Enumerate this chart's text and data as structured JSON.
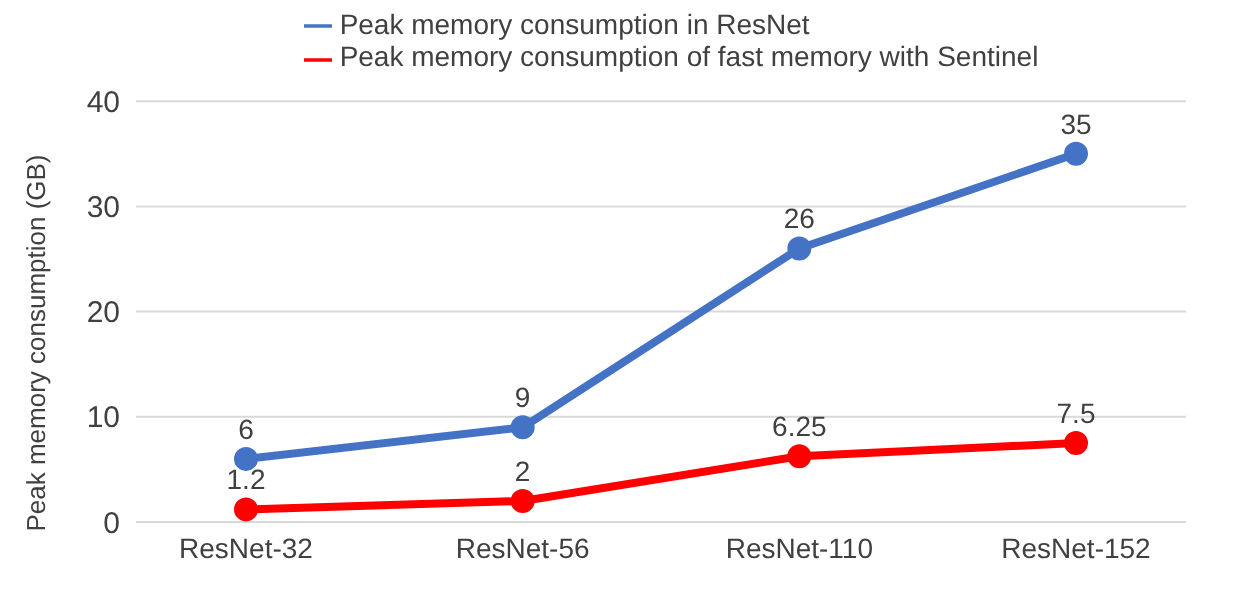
{
  "chart_data": {
    "type": "line",
    "ylabel": "Peak memory consumption (GB)",
    "categories": [
      "ResNet-32",
      "ResNet-56",
      "ResNet-110",
      "ResNet-152"
    ],
    "series": [
      {
        "name": "Peak memory consumption in ResNet",
        "color": "#4472c4",
        "values": [
          6,
          9,
          26,
          35
        ]
      },
      {
        "name": "Peak memory consumption of fast memory with Sentinel",
        "color": "#ff0000",
        "values": [
          1.2,
          2,
          6.25,
          7.5
        ]
      }
    ],
    "ylim": [
      0,
      40
    ],
    "yticks": [
      0,
      10,
      20,
      30,
      40
    ],
    "grid": "y",
    "legend": "top",
    "marker": "circle",
    "line_style": "solid",
    "data_labels": true
  }
}
